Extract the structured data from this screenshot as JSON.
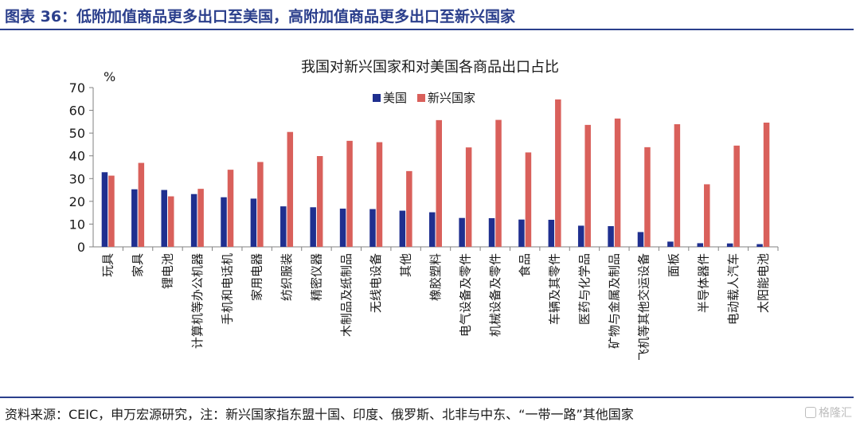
{
  "header": {
    "title": "图表 36：低附加值商品更多出口至美国，高附加值商品更多出口至新兴国家"
  },
  "footer": {
    "source": "资料来源：CEIC，申万宏源研究，注：新兴国家指东盟十国、印度、俄罗斯、北非与中东、“一带一路”其他国家",
    "watermark": "格隆汇"
  },
  "colors": {
    "us": "#1f2f8f",
    "emerging": "#d9605b",
    "accent": "#2b3f8c"
  },
  "chart_data": {
    "type": "bar",
    "title": "我国对新兴国家和对美国各商品出口占比",
    "ylabel": "%",
    "ylim": [
      0,
      70
    ],
    "yticks": [
      0,
      10,
      20,
      30,
      40,
      50,
      60,
      70
    ],
    "legend_position": "top-left",
    "categories": [
      "玩具",
      "家具",
      "锂电池",
      "计算机等办公机器",
      "手机和电话机",
      "家用电器",
      "纺织服装",
      "精密仪器",
      "木制品及纸制品",
      "无线电设备",
      "其他",
      "橡胶塑料",
      "电气设备及零件",
      "机械设备及零件",
      "食品",
      "车辆及其零件",
      "医药与化学品",
      "矿物与金属及制品",
      "飞机等其他交运设备",
      "面板",
      "半导体器件",
      "电动载人汽车",
      "太阳能电池"
    ],
    "series": [
      {
        "name": "美国",
        "values": [
          32.8,
          25.3,
          25.0,
          23.2,
          21.8,
          21.2,
          17.8,
          17.4,
          16.8,
          16.6,
          15.9,
          15.2,
          12.7,
          12.6,
          12.0,
          11.9,
          9.3,
          9.1,
          6.5,
          2.3,
          1.6,
          1.5,
          1.2
        ]
      },
      {
        "name": "新兴国家",
        "values": [
          31.3,
          36.9,
          22.2,
          25.5,
          33.9,
          37.3,
          50.5,
          39.9,
          46.6,
          46.0,
          33.3,
          55.7,
          43.7,
          55.8,
          41.5,
          64.8,
          53.6,
          56.4,
          43.8,
          53.9,
          27.5,
          44.5,
          54.6
        ]
      }
    ]
  }
}
